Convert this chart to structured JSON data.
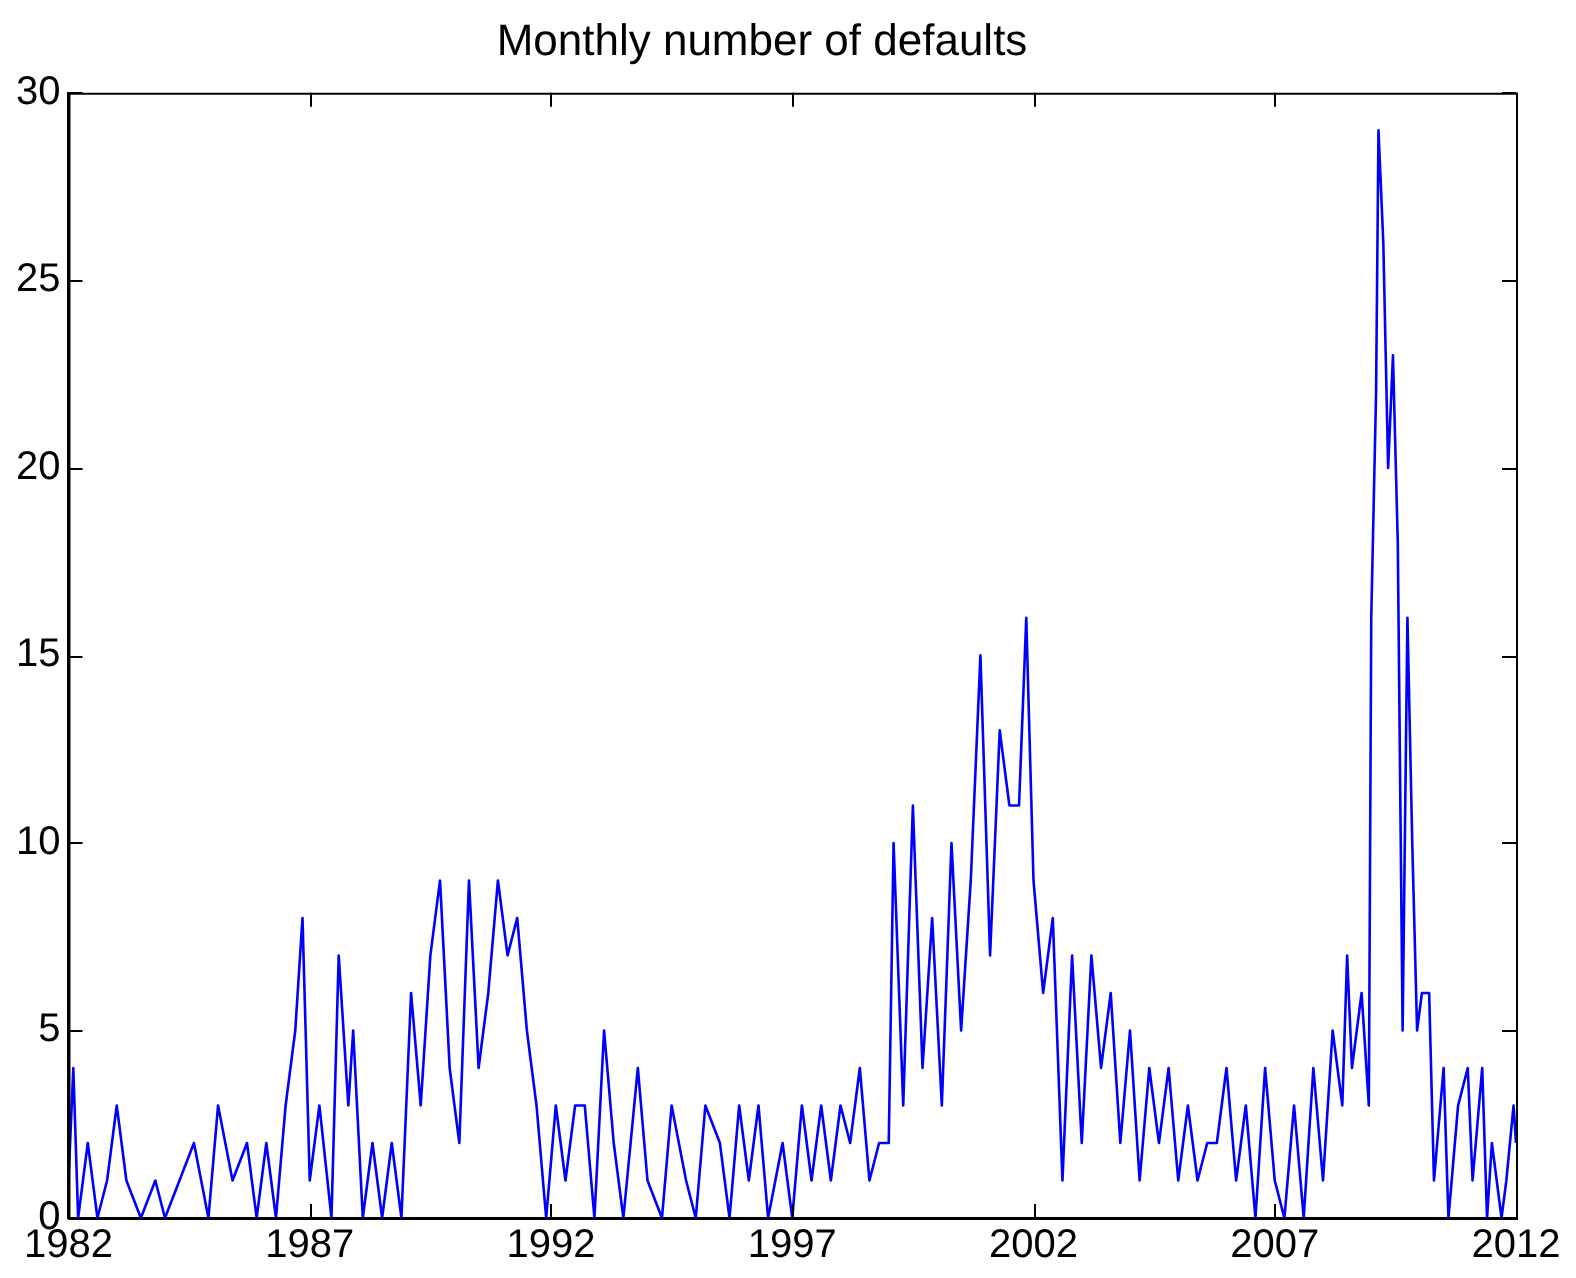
{
  "chart_data": {
    "type": "line",
    "title": "Monthly number of defaults",
    "xlim": [
      1982,
      2012
    ],
    "xticks": [
      1982,
      1987,
      1992,
      1997,
      2002,
      2007,
      2012
    ],
    "ylim": [
      0,
      30
    ],
    "yticks": [
      0,
      5,
      10,
      15,
      20,
      25,
      30
    ],
    "grid": false,
    "marker": "none",
    "x": [
      1982.0,
      1982.1,
      1982.2,
      1982.4,
      1982.6,
      1982.8,
      1983.0,
      1983.2,
      1983.5,
      1983.8,
      1984.0,
      1984.3,
      1984.6,
      1984.9,
      1985.1,
      1985.4,
      1985.7,
      1985.9,
      1986.1,
      1986.3,
      1986.5,
      1986.7,
      1986.85,
      1987.0,
      1987.2,
      1987.45,
      1987.6,
      1987.8,
      1987.9,
      1988.1,
      1988.3,
      1988.5,
      1988.7,
      1988.9,
      1989.1,
      1989.3,
      1989.5,
      1989.7,
      1989.9,
      1990.1,
      1990.3,
      1990.5,
      1990.7,
      1990.9,
      1991.1,
      1991.3,
      1991.5,
      1991.7,
      1991.9,
      1992.1,
      1992.3,
      1992.5,
      1992.7,
      1992.9,
      1993.1,
      1993.3,
      1993.5,
      1993.8,
      1994.0,
      1994.3,
      1994.5,
      1994.8,
      1995.0,
      1995.2,
      1995.5,
      1995.7,
      1995.9,
      1996.1,
      1996.3,
      1996.5,
      1996.8,
      1997.0,
      1997.2,
      1997.4,
      1997.6,
      1997.8,
      1998.0,
      1998.2,
      1998.4,
      1998.6,
      1998.8,
      1999.0,
      1999.1,
      1999.3,
      1999.5,
      1999.7,
      1999.9,
      2000.1,
      2000.3,
      2000.5,
      2000.7,
      2000.9,
      2001.1,
      2001.3,
      2001.5,
      2001.7,
      2001.85,
      2002.0,
      2002.2,
      2002.4,
      2002.6,
      2002.8,
      2003.0,
      2003.2,
      2003.4,
      2003.6,
      2003.8,
      2004.0,
      2004.2,
      2004.4,
      2004.6,
      2004.8,
      2005.0,
      2005.2,
      2005.4,
      2005.6,
      2005.8,
      2006.0,
      2006.2,
      2006.4,
      2006.6,
      2006.8,
      2007.0,
      2007.2,
      2007.4,
      2007.6,
      2007.8,
      2008.0,
      2008.2,
      2008.4,
      2008.5,
      2008.6,
      2008.8,
      2008.95,
      2009.0,
      2009.1,
      2009.15,
      2009.25,
      2009.35,
      2009.45,
      2009.55,
      2009.65,
      2009.75,
      2009.85,
      2009.95,
      2010.05,
      2010.2,
      2010.3,
      2010.5,
      2010.6,
      2010.8,
      2011.0,
      2011.1,
      2011.3,
      2011.4,
      2011.5,
      2011.7,
      2011.8,
      2011.95,
      2012.0
    ],
    "series": [
      {
        "color": "#0000ff",
        "values": [
          1,
          4,
          0,
          2,
          0,
          1,
          3,
          1,
          0,
          1,
          0,
          1,
          2,
          0,
          3,
          1,
          2,
          0,
          2,
          0,
          3,
          5,
          8,
          1,
          3,
          0,
          7,
          3,
          5,
          0,
          2,
          0,
          2,
          0,
          6,
          3,
          7,
          9,
          4,
          2,
          9,
          4,
          6,
          9,
          7,
          8,
          5,
          3,
          0,
          3,
          1,
          3,
          3,
          0,
          5,
          2,
          0,
          4,
          1,
          0,
          3,
          1,
          0,
          3,
          2,
          0,
          3,
          1,
          3,
          0,
          2,
          0,
          3,
          1,
          3,
          1,
          3,
          2,
          4,
          1,
          2,
          2,
          10,
          3,
          11,
          4,
          8,
          3,
          10,
          5,
          9,
          15,
          7,
          13,
          11,
          11,
          16,
          9,
          6,
          8,
          1,
          7,
          2,
          7,
          4,
          6,
          2,
          5,
          1,
          4,
          2,
          4,
          1,
          3,
          1,
          2,
          2,
          4,
          1,
          3,
          0,
          4,
          1,
          0,
          3,
          0,
          4,
          1,
          5,
          3,
          7,
          4,
          6,
          3,
          16,
          22,
          29,
          26,
          20,
          23,
          18,
          5,
          16,
          10,
          5,
          6,
          6,
          1,
          4,
          0,
          3,
          4,
          1,
          4,
          0,
          2,
          0,
          1,
          3,
          2
        ]
      }
    ]
  }
}
